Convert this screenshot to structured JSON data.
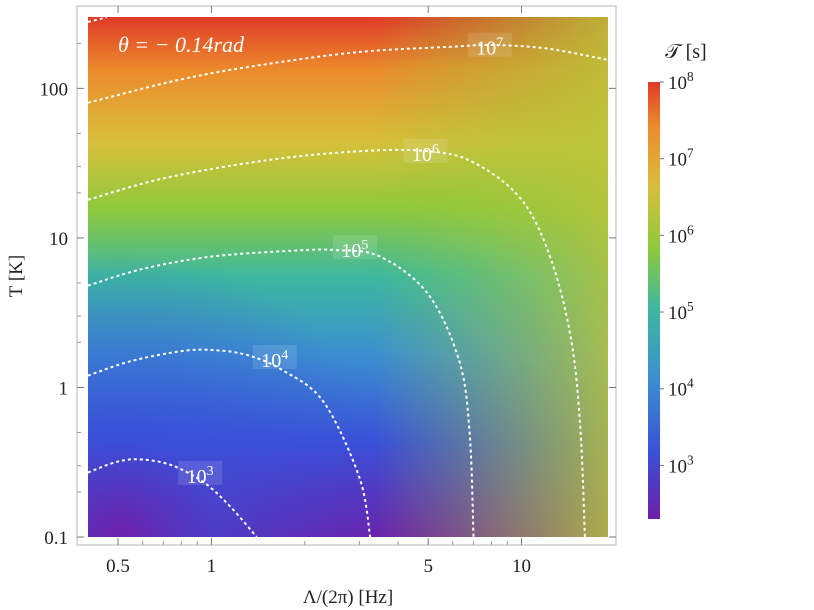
{
  "chart_data": {
    "type": "heatmap",
    "annotation": "θ = − 0.14rad",
    "xlabel": "Λ/(2π) [Hz]",
    "ylabel": "T [K]",
    "x_scale": "log",
    "y_scale": "log",
    "xlim": [
      0.4,
      19
    ],
    "ylim": [
      0.1,
      300
    ],
    "x_ticks": [
      {
        "value": 0.5,
        "label": "0.5"
      },
      {
        "value": 1,
        "label": "1"
      },
      {
        "value": 5,
        "label": "5"
      },
      {
        "value": 10,
        "label": "10"
      }
    ],
    "y_ticks": [
      {
        "value": 0.1,
        "label": "0.1"
      },
      {
        "value": 1,
        "label": "1"
      },
      {
        "value": 10,
        "label": "10"
      },
      {
        "value": 100,
        "label": "100"
      }
    ],
    "colorbar": {
      "title": "𝒯 [s]",
      "scale": "log",
      "range": [
        200,
        100000000
      ],
      "ticks": [
        {
          "value": 1000,
          "base": "10",
          "exp": "3"
        },
        {
          "value": 10000,
          "base": "10",
          "exp": "4"
        },
        {
          "value": 100000,
          "base": "10",
          "exp": "5"
        },
        {
          "value": 1000000,
          "base": "10",
          "exp": "6"
        },
        {
          "value": 10000000,
          "base": "10",
          "exp": "7"
        },
        {
          "value": 100000000,
          "base": "10",
          "exp": "8"
        }
      ],
      "colors": [
        "#6e1fa8",
        "#3a4fd8",
        "#3b8fd0",
        "#3cb8a0",
        "#8fc93c",
        "#d8bf3a",
        "#ec8a2c",
        "#e03a28"
      ]
    },
    "contours": [
      {
        "value": 1000,
        "base": "10",
        "exp": "3",
        "points": [
          [
            0.4,
            0.27
          ],
          [
            0.5,
            0.32
          ],
          [
            0.6,
            0.33
          ],
          [
            0.75,
            0.3
          ],
          [
            0.95,
            0.23
          ],
          [
            1.15,
            0.16
          ],
          [
            1.4,
            0.1
          ]
        ]
      },
      {
        "value": 10000,
        "base": "10",
        "exp": "4",
        "points": [
          [
            0.4,
            1.2
          ],
          [
            0.55,
            1.5
          ],
          [
            0.8,
            1.75
          ],
          [
            1.0,
            1.78
          ],
          [
            1.3,
            1.65
          ],
          [
            1.7,
            1.3
          ],
          [
            2.3,
            0.8
          ],
          [
            3.0,
            0.25
          ],
          [
            3.25,
            0.1
          ]
        ]
      },
      {
        "value": 100000,
        "base": "10",
        "exp": "5",
        "points": [
          [
            0.4,
            4.8
          ],
          [
            0.6,
            6.2
          ],
          [
            1.0,
            7.5
          ],
          [
            1.8,
            8.2
          ],
          [
            2.5,
            8.3
          ],
          [
            3.5,
            7.5
          ],
          [
            5.0,
            4.2
          ],
          [
            6.3,
            1.5
          ],
          [
            6.8,
            0.5
          ],
          [
            7.0,
            0.1
          ]
        ]
      },
      {
        "value": 1000000,
        "base": "10",
        "exp": "6",
        "points": [
          [
            0.4,
            18
          ],
          [
            0.7,
            25
          ],
          [
            1.5,
            33
          ],
          [
            3.0,
            38
          ],
          [
            5.0,
            38
          ],
          [
            7.0,
            32
          ],
          [
            10.0,
            18
          ],
          [
            12.5,
            7
          ],
          [
            14.5,
            2
          ],
          [
            15.5,
            0.5
          ],
          [
            16.0,
            0.1
          ]
        ]
      },
      {
        "value": 10000000,
        "base": "10",
        "exp": "7",
        "points": [
          [
            0.4,
            80
          ],
          [
            0.8,
            115
          ],
          [
            1.5,
            145
          ],
          [
            3.0,
            175
          ],
          [
            6.0,
            190
          ],
          [
            8.0,
            195
          ],
          [
            12.0,
            185
          ],
          [
            19.0,
            155
          ]
        ]
      },
      {
        "value": 100000000,
        "base": "10",
        "exp": "8",
        "points": [
          [
            0.4,
            278
          ],
          [
            0.44,
            292
          ],
          [
            0.46,
            300
          ]
        ]
      }
    ],
    "contour_labels": [
      {
        "contour": 0,
        "x": 0.92,
        "y": 0.26
      },
      {
        "contour": 1,
        "x": 1.6,
        "y": 1.55
      },
      {
        "contour": 2,
        "x": 2.9,
        "y": 8.4
      },
      {
        "contour": 3,
        "x": 4.9,
        "y": 37
      },
      {
        "contour": 4,
        "x": 7.9,
        "y": 190
      }
    ]
  }
}
